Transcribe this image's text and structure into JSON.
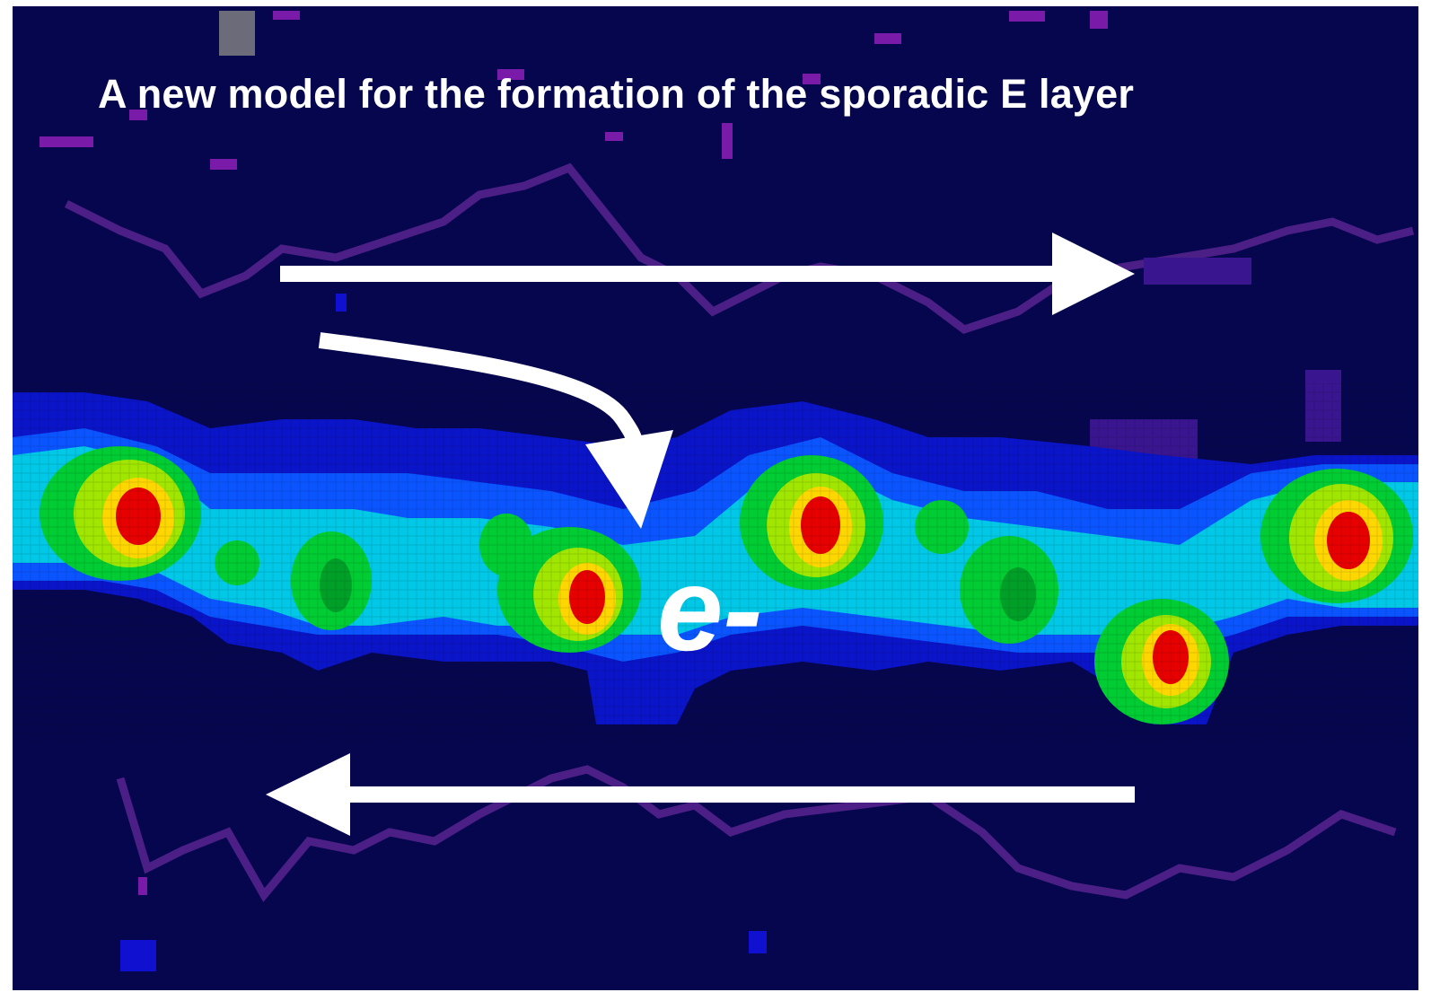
{
  "figure": {
    "title": "A new model for the formation of the sporadic E layer",
    "electron_label": "e-"
  },
  "colors": {
    "background": "#06064f",
    "arrows": "#ffffff",
    "noise": "#5a1d8c",
    "layer_palette": [
      "#0a14c8",
      "#0a55ff",
      "#00c8e6",
      "#00cc33",
      "#a0e600",
      "#ffd700",
      "#ff5a00",
      "#e60000"
    ]
  }
}
